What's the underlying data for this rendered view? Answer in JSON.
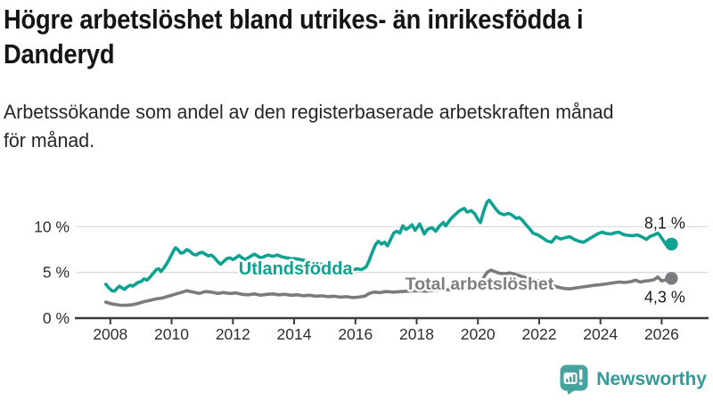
{
  "header": {
    "title_lines": [
      "Högre arbetslöshet bland utrikes- än inrikesfödda i",
      "Danderyd"
    ],
    "subtitle_lines": [
      "Arbetssökande som andel av den registerbaserade arbetskraften månad",
      "för månad."
    ]
  },
  "chart_data": {
    "type": "line",
    "title": "Högre arbetslöshet bland utrikes- än inrikesfödda i Danderyd",
    "subtitle": "Arbetssökande som andel av den registerbaserade arbetskraften månad för månad.",
    "unit": "%",
    "grid": "horizontal-only",
    "legend_position": "inline-labels",
    "style": {
      "grid_color": "#DBDBDB",
      "axis_color": "#3C3C3C",
      "tick_color": "#2E2E2E",
      "end_label_color": "#1A1A1A",
      "background": "#FFFFFF"
    },
    "x_axis": {
      "lim": [
        2006.9,
        2027.5
      ],
      "ticks": [
        2008,
        2010,
        2012,
        2014,
        2016,
        2018,
        2020,
        2022,
        2024,
        2026
      ]
    },
    "y_axis": {
      "lim": [
        0,
        13.35
      ],
      "ticks": [
        {
          "value": 0,
          "label": "0 %"
        },
        {
          "value": 5,
          "label": "5 %"
        },
        {
          "value": 10,
          "label": "10 %"
        }
      ]
    },
    "series": [
      {
        "id": "total",
        "name": "Total arbetslöshet",
        "color": "#7B7B7F",
        "label_color": "#7E7E82",
        "label_size": 19.5,
        "label_pos": {
          "x": 2020.05,
          "y": 3.78
        },
        "end_label": "4,3 %",
        "end_label_pos": {
          "x": 2026.1,
          "y": 2.3
        },
        "end_value": 4.3,
        "points": [
          [
            2007.85,
            1.75
          ],
          [
            2008.0,
            1.6
          ],
          [
            2008.15,
            1.5
          ],
          [
            2008.3,
            1.42
          ],
          [
            2008.5,
            1.4
          ],
          [
            2008.7,
            1.45
          ],
          [
            2008.9,
            1.6
          ],
          [
            2009.1,
            1.8
          ],
          [
            2009.3,
            1.95
          ],
          [
            2009.5,
            2.1
          ],
          [
            2009.7,
            2.2
          ],
          [
            2009.9,
            2.4
          ],
          [
            2010.1,
            2.6
          ],
          [
            2010.3,
            2.8
          ],
          [
            2010.5,
            3.0
          ],
          [
            2010.7,
            2.85
          ],
          [
            2010.9,
            2.7
          ],
          [
            2011.1,
            2.9
          ],
          [
            2011.3,
            2.85
          ],
          [
            2011.5,
            2.7
          ],
          [
            2011.7,
            2.8
          ],
          [
            2011.9,
            2.7
          ],
          [
            2012.1,
            2.75
          ],
          [
            2012.3,
            2.6
          ],
          [
            2012.5,
            2.55
          ],
          [
            2012.7,
            2.65
          ],
          [
            2012.9,
            2.5
          ],
          [
            2013.1,
            2.6
          ],
          [
            2013.3,
            2.65
          ],
          [
            2013.5,
            2.55
          ],
          [
            2013.7,
            2.6
          ],
          [
            2013.9,
            2.5
          ],
          [
            2014.1,
            2.55
          ],
          [
            2014.3,
            2.45
          ],
          [
            2014.5,
            2.5
          ],
          [
            2014.7,
            2.4
          ],
          [
            2014.9,
            2.45
          ],
          [
            2015.1,
            2.35
          ],
          [
            2015.3,
            2.4
          ],
          [
            2015.5,
            2.3
          ],
          [
            2015.7,
            2.35
          ],
          [
            2015.9,
            2.25
          ],
          [
            2016.1,
            2.3
          ],
          [
            2016.3,
            2.4
          ],
          [
            2016.45,
            2.7
          ],
          [
            2016.6,
            2.85
          ],
          [
            2016.8,
            2.8
          ],
          [
            2017.0,
            2.9
          ],
          [
            2017.25,
            2.85
          ],
          [
            2017.5,
            2.9
          ],
          [
            2017.75,
            2.95
          ],
          [
            2018.0,
            3.0
          ],
          [
            2018.3,
            2.95
          ],
          [
            2018.6,
            3.05
          ],
          [
            2018.9,
            3.1
          ],
          [
            2019.2,
            3.15
          ],
          [
            2019.5,
            3.2
          ],
          [
            2019.8,
            3.3
          ],
          [
            2020.0,
            3.5
          ],
          [
            2020.1,
            3.9
          ],
          [
            2020.2,
            4.5
          ],
          [
            2020.3,
            5.0
          ],
          [
            2020.42,
            5.25
          ],
          [
            2020.55,
            5.1
          ],
          [
            2020.7,
            4.9
          ],
          [
            2020.9,
            4.85
          ],
          [
            2021.05,
            4.95
          ],
          [
            2021.2,
            4.8
          ],
          [
            2021.4,
            4.6
          ],
          [
            2021.6,
            4.4
          ],
          [
            2021.8,
            4.25
          ],
          [
            2022.0,
            4.05
          ],
          [
            2022.2,
            3.8
          ],
          [
            2022.4,
            3.6
          ],
          [
            2022.6,
            3.4
          ],
          [
            2022.8,
            3.25
          ],
          [
            2023.0,
            3.2
          ],
          [
            2023.2,
            3.3
          ],
          [
            2023.4,
            3.4
          ],
          [
            2023.6,
            3.5
          ],
          [
            2023.8,
            3.6
          ],
          [
            2024.0,
            3.65
          ],
          [
            2024.2,
            3.75
          ],
          [
            2024.4,
            3.85
          ],
          [
            2024.6,
            3.95
          ],
          [
            2024.8,
            3.9
          ],
          [
            2025.0,
            4.0
          ],
          [
            2025.15,
            4.15
          ],
          [
            2025.3,
            3.95
          ],
          [
            2025.45,
            4.05
          ],
          [
            2025.6,
            4.1
          ],
          [
            2025.75,
            4.2
          ],
          [
            2025.87,
            4.5
          ],
          [
            2026.0,
            4.05
          ],
          [
            2026.15,
            4.2
          ],
          [
            2026.32,
            4.35
          ]
        ]
      },
      {
        "id": "utlandsfodda",
        "name": "Utlandsfödda",
        "color": "#0FA192",
        "label_color": "#0FA192",
        "label_size": 20,
        "label_pos": {
          "x": 2014.05,
          "y": 5.45
        },
        "end_label": "8,1 %",
        "end_label_pos": {
          "x": 2026.1,
          "y": 10.4
        },
        "end_value": 8.1,
        "points": [
          [
            2007.85,
            3.7
          ],
          [
            2007.95,
            3.3
          ],
          [
            2008.05,
            3.0
          ],
          [
            2008.13,
            2.95
          ],
          [
            2008.2,
            3.2
          ],
          [
            2008.3,
            3.5
          ],
          [
            2008.38,
            3.3
          ],
          [
            2008.46,
            3.15
          ],
          [
            2008.55,
            3.4
          ],
          [
            2008.65,
            3.6
          ],
          [
            2008.73,
            3.5
          ],
          [
            2008.82,
            3.7
          ],
          [
            2008.9,
            3.9
          ],
          [
            2009.0,
            4.0
          ],
          [
            2009.1,
            4.3
          ],
          [
            2009.2,
            4.15
          ],
          [
            2009.3,
            4.5
          ],
          [
            2009.4,
            4.9
          ],
          [
            2009.5,
            5.3
          ],
          [
            2009.58,
            5.4
          ],
          [
            2009.65,
            5.1
          ],
          [
            2009.75,
            5.5
          ],
          [
            2009.85,
            6.0
          ],
          [
            2009.95,
            6.6
          ],
          [
            2010.05,
            7.3
          ],
          [
            2010.13,
            7.7
          ],
          [
            2010.2,
            7.5
          ],
          [
            2010.3,
            7.1
          ],
          [
            2010.4,
            7.2
          ],
          [
            2010.5,
            7.5
          ],
          [
            2010.6,
            7.3
          ],
          [
            2010.7,
            7.0
          ],
          [
            2010.8,
            6.9
          ],
          [
            2010.9,
            7.1
          ],
          [
            2011.0,
            7.2
          ],
          [
            2011.1,
            7.0
          ],
          [
            2011.2,
            6.8
          ],
          [
            2011.3,
            6.9
          ],
          [
            2011.4,
            6.6
          ],
          [
            2011.5,
            6.2
          ],
          [
            2011.6,
            5.9
          ],
          [
            2011.7,
            6.2
          ],
          [
            2011.8,
            6.5
          ],
          [
            2011.9,
            6.6
          ],
          [
            2012.0,
            6.4
          ],
          [
            2012.1,
            6.6
          ],
          [
            2012.2,
            6.85
          ],
          [
            2012.3,
            6.6
          ],
          [
            2012.4,
            6.4
          ],
          [
            2012.5,
            6.6
          ],
          [
            2012.6,
            6.8
          ],
          [
            2012.7,
            7.0
          ],
          [
            2012.8,
            6.8
          ],
          [
            2012.9,
            6.6
          ],
          [
            2013.0,
            6.7
          ],
          [
            2013.15,
            6.9
          ],
          [
            2013.3,
            6.75
          ],
          [
            2013.45,
            6.9
          ],
          [
            2013.6,
            6.7
          ],
          [
            2013.75,
            6.6
          ],
          [
            2013.9,
            6.5
          ],
          [
            2014.05,
            6.5
          ],
          [
            2014.2,
            6.4
          ],
          [
            2014.35,
            6.3
          ],
          [
            2014.5,
            6.2
          ],
          [
            2014.7,
            6.05
          ],
          [
            2014.9,
            5.9
          ],
          [
            2015.1,
            5.7
          ],
          [
            2015.3,
            5.5
          ],
          [
            2015.5,
            5.4
          ],
          [
            2015.7,
            5.3
          ],
          [
            2015.9,
            5.25
          ],
          [
            2016.05,
            5.4
          ],
          [
            2016.2,
            5.3
          ],
          [
            2016.35,
            5.6
          ],
          [
            2016.45,
            6.3
          ],
          [
            2016.55,
            7.2
          ],
          [
            2016.65,
            8.0
          ],
          [
            2016.75,
            8.4
          ],
          [
            2016.85,
            8.1
          ],
          [
            2016.95,
            8.3
          ],
          [
            2017.05,
            7.9
          ],
          [
            2017.15,
            8.6
          ],
          [
            2017.25,
            9.3
          ],
          [
            2017.35,
            9.5
          ],
          [
            2017.45,
            9.3
          ],
          [
            2017.55,
            10.1
          ],
          [
            2017.65,
            9.7
          ],
          [
            2017.75,
            9.9
          ],
          [
            2017.85,
            10.2
          ],
          [
            2017.95,
            9.6
          ],
          [
            2018.1,
            10.3
          ],
          [
            2018.25,
            9.2
          ],
          [
            2018.35,
            9.7
          ],
          [
            2018.5,
            9.9
          ],
          [
            2018.62,
            9.5
          ],
          [
            2018.75,
            10.1
          ],
          [
            2018.87,
            10.45
          ],
          [
            2018.95,
            10.1
          ],
          [
            2019.1,
            10.8
          ],
          [
            2019.25,
            11.3
          ],
          [
            2019.4,
            11.75
          ],
          [
            2019.55,
            12.0
          ],
          [
            2019.65,
            11.6
          ],
          [
            2019.78,
            11.75
          ],
          [
            2019.9,
            11.4
          ],
          [
            2020.0,
            10.8
          ],
          [
            2020.08,
            10.45
          ],
          [
            2020.2,
            11.8
          ],
          [
            2020.3,
            12.7
          ],
          [
            2020.37,
            12.9
          ],
          [
            2020.48,
            12.4
          ],
          [
            2020.58,
            11.95
          ],
          [
            2020.7,
            11.5
          ],
          [
            2020.85,
            11.3
          ],
          [
            2021.0,
            11.45
          ],
          [
            2021.1,
            11.3
          ],
          [
            2021.25,
            10.9
          ],
          [
            2021.35,
            11.0
          ],
          [
            2021.45,
            10.7
          ],
          [
            2021.55,
            10.3
          ],
          [
            2021.68,
            9.8
          ],
          [
            2021.8,
            9.3
          ],
          [
            2021.95,
            9.1
          ],
          [
            2022.1,
            8.8
          ],
          [
            2022.25,
            8.45
          ],
          [
            2022.4,
            8.3
          ],
          [
            2022.55,
            8.9
          ],
          [
            2022.7,
            8.65
          ],
          [
            2022.85,
            8.8
          ],
          [
            2023.0,
            8.9
          ],
          [
            2023.15,
            8.6
          ],
          [
            2023.3,
            8.4
          ],
          [
            2023.45,
            8.3
          ],
          [
            2023.6,
            8.6
          ],
          [
            2023.75,
            8.9
          ],
          [
            2023.9,
            9.2
          ],
          [
            2024.05,
            9.4
          ],
          [
            2024.2,
            9.25
          ],
          [
            2024.35,
            9.2
          ],
          [
            2024.5,
            9.35
          ],
          [
            2024.6,
            9.4
          ],
          [
            2024.75,
            9.15
          ],
          [
            2024.9,
            9.05
          ],
          [
            2025.05,
            9.0
          ],
          [
            2025.2,
            9.1
          ],
          [
            2025.35,
            8.9
          ],
          [
            2025.5,
            8.6
          ],
          [
            2025.6,
            8.9
          ],
          [
            2025.75,
            9.1
          ],
          [
            2025.87,
            9.3
          ],
          [
            2025.95,
            9.0
          ],
          [
            2026.05,
            8.5
          ],
          [
            2026.15,
            8.0
          ],
          [
            2026.25,
            7.95
          ],
          [
            2026.32,
            8.1
          ]
        ]
      }
    ]
  },
  "footer": {
    "brand": "Newsworthy",
    "brand_color": "#339B98",
    "icon": "newsworthy-chart-bubble-icon",
    "icon_color": "#46A3A0"
  }
}
